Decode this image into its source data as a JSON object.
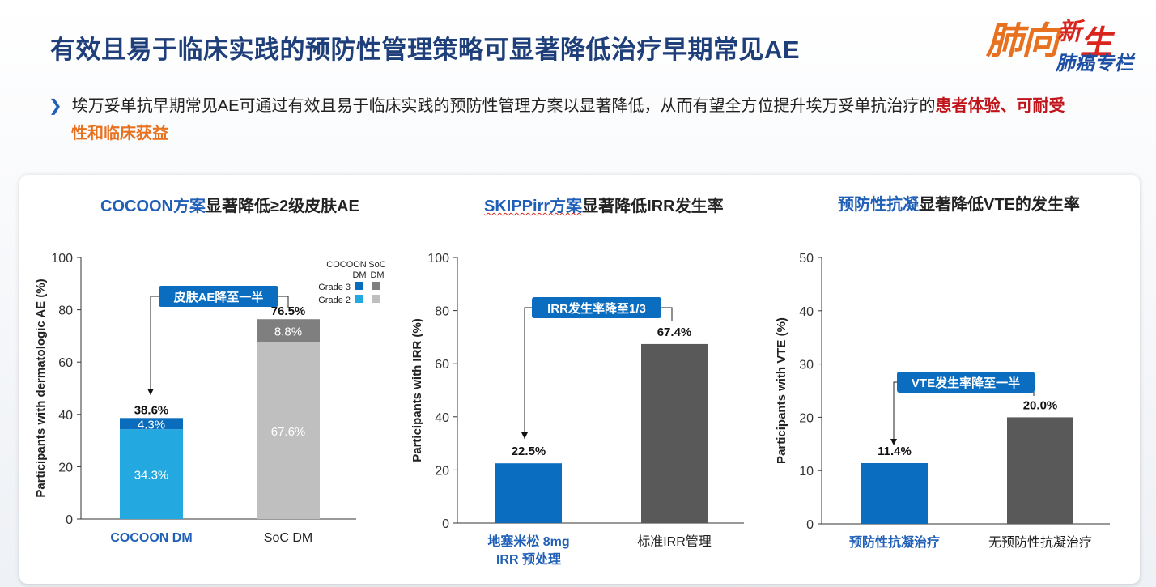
{
  "title": "有效且易于临床实践的预防性管理策略可显著降低治疗早期常见AE",
  "logo": {
    "line1_a": "肺",
    "line1_b": "向",
    "line1_c": "新",
    "line1_d": "生",
    "line2": "肺癌专栏"
  },
  "bullet": {
    "text_plain": "埃万妥单抗早期常见AE可通过有效且易于临床实践的预防性管理方案以显著降低，从而有望全方位提升埃万妥单抗治疗的",
    "text_red": "患者体验、可耐受",
    "text_orange": "性和临床获益"
  },
  "panels": {
    "p1": {
      "title_blue": "COCOON方案",
      "title_rest": "显著降低≥2级皮肤AE"
    },
    "p2": {
      "title_blue": "SKIPPirr方案",
      "title_rest": "显著降低IRR发生率"
    },
    "p3": {
      "title_blue": "预防性抗凝",
      "title_rest": "显著降低VTE的发生率"
    }
  },
  "chart_data": [
    {
      "type": "bar",
      "stacked": true,
      "title": "COCOON方案显著降低≥2级皮肤AE",
      "ylabel": "Participants with dermatologic AE (%)",
      "ylim": [
        0,
        100
      ],
      "yticks": [
        0,
        20,
        40,
        60,
        80,
        100
      ],
      "categories": [
        "COCOON DM",
        "SoC DM"
      ],
      "category_styles": [
        "blue",
        "dark"
      ],
      "series": [
        {
          "name": "Grade 2",
          "values": [
            34.3,
            67.6
          ],
          "labels": [
            "34.3%",
            "67.6%"
          ],
          "colors": [
            "#23a8e0",
            "#bfbfbf"
          ]
        },
        {
          "name": "Grade 3",
          "values": [
            4.3,
            8.8
          ],
          "labels": [
            "4.3%",
            "8.8%"
          ],
          "colors": [
            "#0a6cbd",
            "#7f7f7f"
          ]
        }
      ],
      "totals": [
        "38.6%",
        "76.5%"
      ],
      "total_values": [
        38.6,
        76.5
      ],
      "legend": {
        "placement": "top-right",
        "col1": "COCOON DM",
        "col2": "SoC DM",
        "rows": [
          {
            "label": "Grade 3",
            "colors": [
              "#0a6cbd",
              "#7f7f7f"
            ]
          },
          {
            "label": "Grade 2",
            "colors": [
              "#23a8e0",
              "#bfbfbf"
            ]
          }
        ]
      },
      "annotation": "皮肤AE降至一半",
      "annotation_color": "#0b6dc0"
    },
    {
      "type": "bar",
      "title": "SKIPPirr方案显著降低IRR发生率",
      "ylabel": "Participants with IRR (%)",
      "ylim": [
        0,
        100
      ],
      "yticks": [
        0,
        20,
        40,
        60,
        80,
        100
      ],
      "categories": [
        "地塞米松 8mg\nIRR 预处理",
        "标准IRR管理"
      ],
      "category_styles": [
        "blue",
        "dark"
      ],
      "values": [
        22.5,
        67.4
      ],
      "labels": [
        "22.5%",
        "67.4%"
      ],
      "colors": [
        "#0b6dc0",
        "#595959"
      ],
      "annotation": "IRR发生率降至1/3",
      "annotation_color": "#0b6dc0"
    },
    {
      "type": "bar",
      "title": "预防性抗凝显著降低VTE的发生率",
      "ylabel": "Participants with VTE (%)",
      "ylim": [
        0,
        50
      ],
      "yticks": [
        0,
        10,
        20,
        30,
        40,
        50
      ],
      "categories": [
        "预防性抗凝治疗",
        "无预防性抗凝治疗"
      ],
      "category_styles": [
        "blue",
        "dark"
      ],
      "values": [
        11.4,
        20.0
      ],
      "labels": [
        "11.4%",
        "20.0%"
      ],
      "colors": [
        "#0b6dc0",
        "#595959"
      ],
      "annotation": "VTE发生率降至一半",
      "annotation_color": "#0b6dc0"
    }
  ]
}
